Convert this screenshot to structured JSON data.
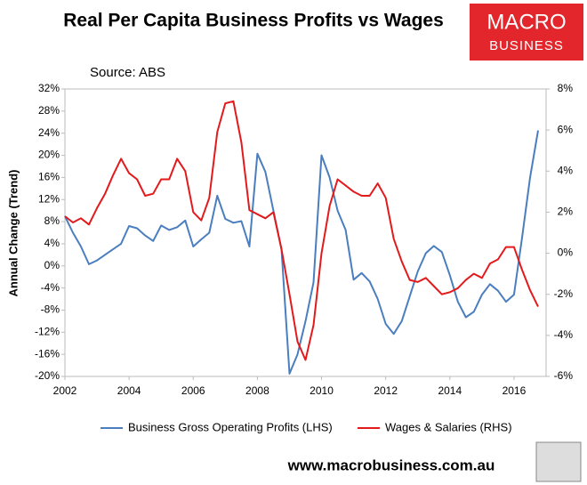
{
  "title": "Real Per Capita Business Profits vs Wages",
  "logo": [
    "MACRO",
    "BUSINESS"
  ],
  "footer": "www.macrobusiness.com.au",
  "chart_data": {
    "type": "line",
    "subtitle": "Source: ABS",
    "y_label": "Annual Change (Trend)",
    "x": [
      2002,
      2002.25,
      2002.5,
      2002.75,
      2003,
      2003.25,
      2003.5,
      2003.75,
      2004,
      2004.25,
      2004.5,
      2004.75,
      2005,
      2005.25,
      2005.5,
      2005.75,
      2006,
      2006.25,
      2006.5,
      2006.75,
      2007,
      2007.25,
      2007.5,
      2007.75,
      2008,
      2008.25,
      2008.5,
      2008.75,
      2009,
      2009.25,
      2009.5,
      2009.75,
      2010,
      2010.25,
      2010.5,
      2010.75,
      2011,
      2011.25,
      2011.5,
      2011.75,
      2012,
      2012.25,
      2012.5,
      2012.75,
      2013,
      2013.25,
      2013.5,
      2013.75,
      2014,
      2014.25,
      2014.5,
      2014.75,
      2015,
      2015.25,
      2015.5,
      2015.75,
      2016,
      2016.25,
      2016.5,
      2016.75
    ],
    "series": [
      {
        "name": "Business Gross Operating Profits (LHS)",
        "color": "#4a7ebf",
        "axis": "y",
        "values": [
          9,
          6,
          3.5,
          0.3,
          1,
          2,
          3,
          4,
          7.2,
          6.8,
          5.5,
          4.5,
          7.3,
          6.5,
          7,
          8.2,
          3.5,
          4.8,
          6,
          12.7,
          8.5,
          7.8,
          8.1,
          3.5,
          20.3,
          17,
          10,
          3,
          -19.5,
          -16,
          -10,
          -3,
          20,
          16,
          10,
          6.5,
          -2.5,
          -1.3,
          -2.8,
          -6,
          -10.5,
          -12.3,
          -10,
          -5.5,
          -1,
          2.3,
          3.6,
          2.5,
          -1.7,
          -6.5,
          -9.3,
          -8.3,
          -5.2,
          -3.3,
          -4.5,
          -6.5,
          -5.2,
          5,
          16,
          24.5
        ]
      },
      {
        "name": "Wages & Salaries (RHS)",
        "color": "#e31a1c",
        "axis": "y2",
        "values": [
          1.8,
          1.5,
          1.7,
          1.4,
          2.2,
          2.9,
          3.8,
          4.6,
          3.9,
          3.6,
          2.8,
          2.9,
          3.6,
          3.6,
          4.6,
          4.0,
          2.0,
          1.6,
          2.7,
          5.9,
          7.3,
          7.4,
          5.4,
          2.1,
          1.9,
          1.7,
          2.0,
          0.2,
          -2.0,
          -4.3,
          -5.2,
          -3.5,
          0,
          2.3,
          3.6,
          3.3,
          3.0,
          2.8,
          2.8,
          3.4,
          2.7,
          0.7,
          -0.4,
          -1.3,
          -1.4,
          -1.2,
          -1.6,
          -2.0,
          -1.9,
          -1.7,
          -1.3,
          -1.0,
          -1.2,
          -0.5,
          -0.3,
          0.3,
          0.3,
          -0.8,
          -1.8,
          -2.6
        ]
      }
    ],
    "xlim": [
      2002,
      2017
    ],
    "xticks": [
      2002,
      2004,
      2006,
      2008,
      2010,
      2012,
      2014,
      2016
    ],
    "ylim": [
      -20,
      32
    ],
    "yticks": [
      {
        "value": 32,
        "label": "32%"
      },
      {
        "value": 28,
        "label": "28%"
      },
      {
        "value": 24,
        "label": "24%"
      },
      {
        "value": 20,
        "label": "20%"
      },
      {
        "value": 16,
        "label": "16%"
      },
      {
        "value": 12,
        "label": "12%"
      },
      {
        "value": 8,
        "label": "8%"
      },
      {
        "value": 4,
        "label": "4%"
      },
      {
        "value": 0,
        "label": "0%"
      },
      {
        "value": -4,
        "label": "-4%"
      },
      {
        "value": -8,
        "label": "-8%"
      },
      {
        "value": -12,
        "label": "-12%"
      },
      {
        "value": -16,
        "label": "-16%"
      },
      {
        "value": -20,
        "label": "-20%"
      }
    ],
    "y2lim": [
      -6,
      8
    ],
    "y2ticks": [
      {
        "value": 8,
        "label": "8%"
      },
      {
        "value": 6,
        "label": "6%"
      },
      {
        "value": 4,
        "label": "4%"
      },
      {
        "value": 2,
        "label": "2%"
      },
      {
        "value": 0,
        "label": "0%"
      },
      {
        "value": -2,
        "label": "-2%"
      },
      {
        "value": -4,
        "label": "-4%"
      },
      {
        "value": -6,
        "label": "-6%"
      }
    ],
    "grid": false
  }
}
